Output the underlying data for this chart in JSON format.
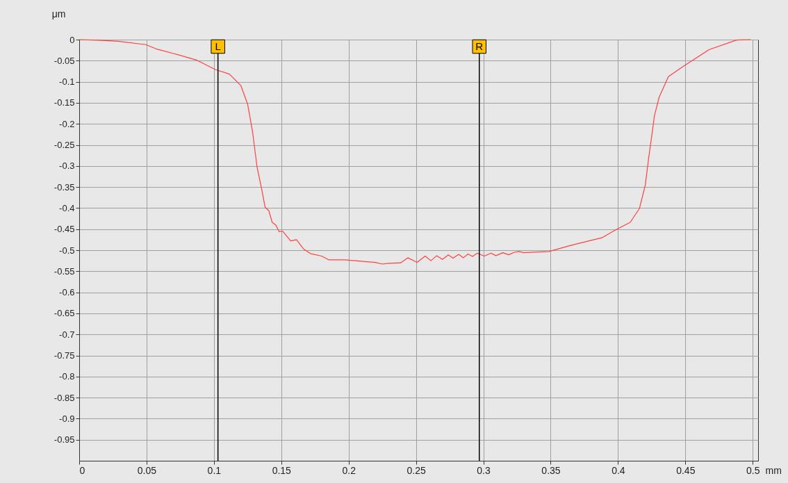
{
  "chart_data": {
    "type": "line",
    "xlabel": "mm",
    "ylabel": "μm",
    "x": [
      0,
      0.0169,
      0.0289,
      0.0495,
      0.058,
      0.07,
      0.0874,
      0.101,
      0.1115,
      0.12,
      0.125,
      0.1287,
      0.132,
      0.1356,
      0.138,
      0.1407,
      0.1433,
      0.1459,
      0.1484,
      0.151,
      0.157,
      0.1613,
      0.1665,
      0.1716,
      0.18,
      0.1854,
      0.1974,
      0.2198,
      0.225,
      0.23,
      0.2387,
      0.2439,
      0.2508,
      0.2568,
      0.2611,
      0.2654,
      0.2697,
      0.274,
      0.2775,
      0.2817,
      0.2852,
      0.2886,
      0.292,
      0.2955,
      0.3007,
      0.3058,
      0.3093,
      0.3145,
      0.3188,
      0.323,
      0.3265,
      0.33,
      0.3488,
      0.3643,
      0.3884,
      0.3987,
      0.409,
      0.4159,
      0.4202,
      0.4228,
      0.4254,
      0.427,
      0.4305,
      0.4374,
      0.4486,
      0.4675,
      0.488,
      0.4985
    ],
    "series": [
      {
        "color": "#ff4040",
        "values": [
          0,
          -0.002,
          -0.004,
          -0.012,
          -0.023,
          -0.033,
          -0.049,
          -0.071,
          -0.082,
          -0.109,
          -0.153,
          -0.219,
          -0.302,
          -0.357,
          -0.398,
          -0.406,
          -0.434,
          -0.44,
          -0.456,
          -0.455,
          -0.478,
          -0.475,
          -0.497,
          -0.508,
          -0.514,
          -0.523,
          -0.523,
          -0.529,
          -0.533,
          -0.531,
          -0.53,
          -0.518,
          -0.529,
          -0.514,
          -0.525,
          -0.513,
          -0.522,
          -0.511,
          -0.519,
          -0.51,
          -0.518,
          -0.509,
          -0.515,
          -0.507,
          -0.514,
          -0.507,
          -0.513,
          -0.506,
          -0.511,
          -0.505,
          -0.503,
          -0.506,
          -0.503,
          -0.489,
          -0.47,
          -0.451,
          -0.434,
          -0.401,
          -0.346,
          -0.28,
          -0.22,
          -0.181,
          -0.137,
          -0.088,
          -0.063,
          -0.024,
          -0.001,
          0
        ]
      }
    ],
    "xlim": [
      0,
      0.504
    ],
    "ylim": [
      -1,
      0
    ],
    "xticks": [
      0,
      0.05,
      0.1,
      0.15,
      0.2,
      0.25,
      0.3,
      0.35,
      0.4,
      0.45,
      0.5
    ],
    "yticks": [
      0,
      -0.05,
      -0.1,
      -0.15,
      -0.2,
      -0.25,
      -0.3,
      -0.35,
      -0.4,
      -0.45,
      -0.5,
      -0.55,
      -0.6,
      -0.65,
      -0.7,
      -0.75,
      -0.8,
      -0.85,
      -0.9,
      -0.95
    ],
    "grid": true,
    "marker": "none",
    "line_style": "solid",
    "ref_lines": [
      {
        "axis": "x",
        "value": 0.103,
        "label": "L",
        "color": "#000000"
      },
      {
        "axis": "x",
        "value": 0.297,
        "label": "R",
        "color": "#000000"
      }
    ]
  }
}
